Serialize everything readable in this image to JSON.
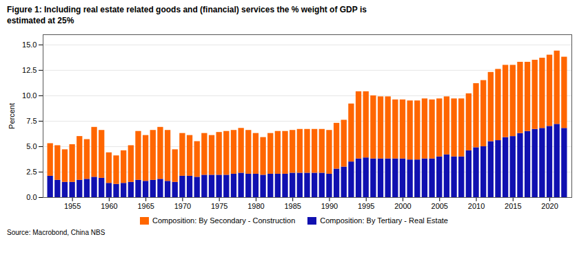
{
  "chart_data": {
    "type": "bar",
    "stacked": true,
    "title": "Figure 1: Including real estate related goods and (financial) services the % weight of GDP is",
    "subtitle": "estimated at 25%",
    "source": "Source: Macrobond, China NBS",
    "ylabel": "Percent",
    "grid": true,
    "x": [
      1952,
      1953,
      1954,
      1955,
      1956,
      1957,
      1958,
      1959,
      1960,
      1961,
      1962,
      1963,
      1964,
      1965,
      1966,
      1967,
      1968,
      1969,
      1970,
      1971,
      1972,
      1973,
      1974,
      1975,
      1976,
      1977,
      1978,
      1979,
      1980,
      1981,
      1982,
      1983,
      1984,
      1985,
      1986,
      1987,
      1988,
      1989,
      1990,
      1991,
      1992,
      1993,
      1994,
      1995,
      1996,
      1997,
      1998,
      1999,
      2000,
      2001,
      2002,
      2003,
      2004,
      2005,
      2006,
      2007,
      2008,
      2009,
      2010,
      2011,
      2012,
      2013,
      2014,
      2015,
      2016,
      2017,
      2018,
      2019,
      2020,
      2021,
      2022
    ],
    "xlim": [
      1951,
      2023
    ],
    "xticks": [
      1955,
      1960,
      1965,
      1970,
      1975,
      1980,
      1985,
      1990,
      1995,
      2000,
      2005,
      2010,
      2015,
      2020
    ],
    "ylim": [
      0,
      16.0
    ],
    "yticks": [
      {
        "value": 0,
        "label": "0.0"
      },
      2.5,
      {
        "value": 5,
        "label": "5.0"
      },
      7.5,
      {
        "value": 10,
        "label": "10.0"
      },
      12.5,
      {
        "value": 15,
        "label": "15.0"
      }
    ],
    "series": [
      {
        "name": "Composition: By Tertiary - Real Estate",
        "color": "#1010b0",
        "values": [
          2.1,
          1.7,
          1.5,
          1.5,
          1.7,
          1.8,
          2.0,
          1.9,
          1.4,
          1.3,
          1.4,
          1.5,
          1.7,
          1.6,
          1.7,
          1.8,
          1.6,
          1.5,
          2.1,
          2.1,
          2.0,
          2.2,
          2.2,
          2.2,
          2.2,
          2.3,
          2.4,
          2.3,
          2.3,
          2.2,
          2.3,
          2.3,
          2.3,
          2.4,
          2.4,
          2.4,
          2.4,
          2.4,
          2.3,
          2.8,
          3.0,
          3.5,
          3.8,
          3.9,
          3.8,
          3.8,
          3.8,
          3.8,
          3.8,
          3.7,
          3.7,
          3.8,
          3.8,
          4.0,
          4.2,
          4.0,
          4.0,
          4.6,
          4.9,
          5.0,
          5.5,
          5.6,
          5.9,
          6.0,
          6.3,
          6.5,
          6.7,
          6.8,
          7.0,
          7.2,
          6.8
        ]
      },
      {
        "name": "Composition: By Secondary - Construction",
        "color": "#FF6600",
        "values": [
          3.2,
          3.4,
          3.2,
          3.7,
          4.3,
          3.9,
          4.9,
          4.7,
          3.0,
          2.8,
          3.2,
          3.6,
          4.8,
          4.5,
          4.9,
          5.1,
          5.0,
          3.2,
          4.2,
          4.0,
          3.5,
          4.1,
          3.9,
          4.2,
          4.3,
          4.3,
          4.4,
          4.3,
          4.0,
          3.7,
          4.0,
          4.2,
          4.2,
          4.2,
          4.3,
          4.3,
          4.3,
          4.3,
          4.3,
          4.5,
          4.6,
          5.7,
          6.6,
          6.5,
          6.2,
          6.1,
          6.1,
          5.8,
          5.8,
          5.8,
          5.8,
          5.9,
          5.8,
          5.7,
          5.7,
          5.7,
          5.7,
          5.6,
          6.3,
          6.5,
          6.8,
          7.0,
          7.1,
          7.0,
          7.0,
          6.8,
          6.8,
          6.9,
          7.0,
          7.2,
          7.0
        ]
      }
    ]
  }
}
